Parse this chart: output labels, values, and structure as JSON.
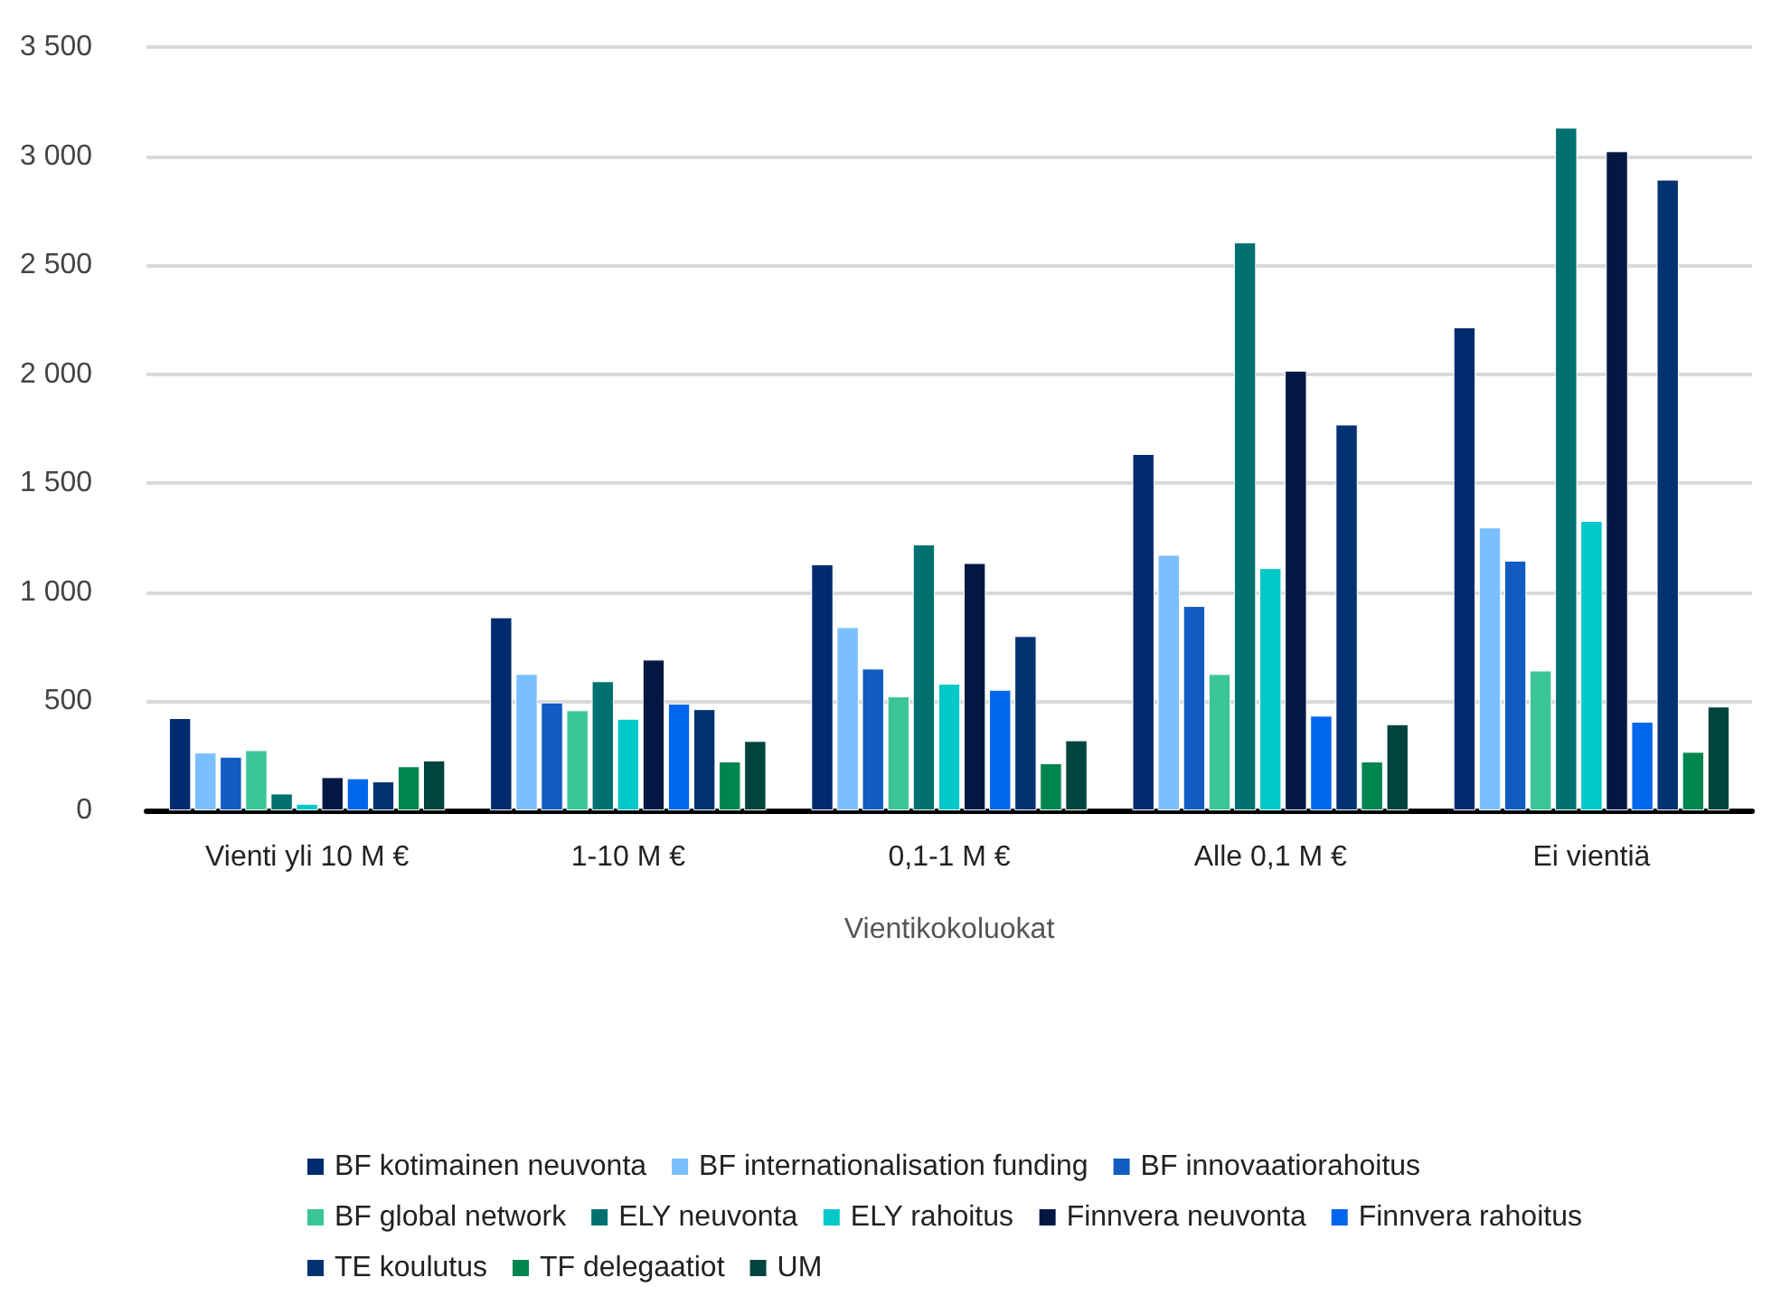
{
  "chart_data": {
    "type": "bar",
    "xlabel": "Vientikokoluokat",
    "categories": [
      "Vienti yli 10 M €",
      "1-10 M €",
      "0,1-1 M €",
      "Alle 0,1 M €",
      "Ei vientiä"
    ],
    "series": [
      {
        "name": "BF kotimainen neuvonta",
        "color": "#002b6e",
        "values": [
          423,
          885,
          1128,
          1634,
          2215
        ]
      },
      {
        "name": "BF internationalisation funding",
        "color": "#7abfff",
        "values": [
          265,
          625,
          840,
          1172,
          1297
        ]
      },
      {
        "name": "BF innovaatiorahoitus",
        "color": "#115bc2",
        "values": [
          246,
          495,
          650,
          937,
          1145
        ]
      },
      {
        "name": "BF global network",
        "color": "#3cc598",
        "values": [
          276,
          459,
          523,
          625,
          641
        ]
      },
      {
        "name": "ELY neuvonta",
        "color": "#007070",
        "values": [
          77,
          592,
          1219,
          2604,
          3130
        ]
      },
      {
        "name": "ELY rahoitus",
        "color": "#00c8c8",
        "values": [
          30,
          420,
          581,
          1111,
          1327
        ]
      },
      {
        "name": "Finnvera neuvonta",
        "color": "#021842",
        "values": [
          152,
          691,
          1134,
          2016,
          3022
        ]
      },
      {
        "name": "Finnvera rahoitus",
        "color": "#0066ee",
        "values": [
          147,
          489,
          553,
          434,
          406
        ]
      },
      {
        "name": "TE koulutus",
        "color": "#033273",
        "values": [
          133,
          464,
          799,
          1769,
          2892
        ]
      },
      {
        "name": "TF delegaatiot",
        "color": "#00854f",
        "values": [
          202,
          224,
          216,
          224,
          268
        ]
      },
      {
        "name": "UM",
        "color": "#00443f",
        "values": [
          229,
          318,
          321,
          395,
          476
        ]
      }
    ],
    "ylim": [
      0,
      3500
    ],
    "yticks": [
      0,
      500,
      {
        "value": 1000,
        "label": "1 000"
      },
      {
        "value": 1500,
        "label": "1 500"
      },
      {
        "value": 2000,
        "label": "2 000"
      },
      {
        "value": 2500,
        "label": "2 500"
      },
      {
        "value": 3000,
        "label": "3 000"
      },
      {
        "value": 3500,
        "label": "3 500"
      }
    ],
    "grid": "y",
    "legend": "bottom"
  }
}
